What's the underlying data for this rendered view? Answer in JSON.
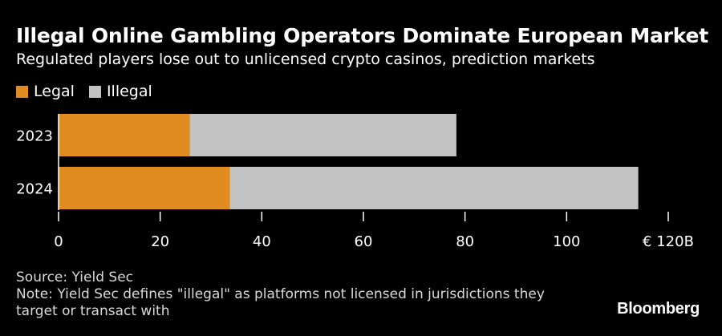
{
  "title": "Illegal Online Gambling Operators Dominate European Market",
  "subtitle": "Regulated players lose out to unlicensed crypto casinos, prediction markets",
  "source": "Source: Yield Sec",
  "note": "Note: Yield Sec defines \"illegal\" as platforms not licensed in jurisdictions they target or transact with",
  "brand": "Bloomberg",
  "colors": {
    "legal": "#e08c21",
    "illegal": "#c3c3c3",
    "axis": "#ffffff"
  },
  "chart_data": {
    "type": "bar",
    "orientation": "horizontal",
    "stacked": true,
    "categories": [
      "2023",
      "2024"
    ],
    "series": [
      {
        "name": "Legal",
        "values": [
          25.8,
          33.7
        ]
      },
      {
        "name": "Illegal",
        "values": [
          52.5,
          80.4
        ]
      }
    ],
    "xlim": [
      0,
      120
    ],
    "x_ticks": [
      0,
      20,
      40,
      60,
      80,
      100,
      120
    ],
    "x_tick_labels": [
      "0",
      "20",
      "40",
      "60",
      "80",
      "100",
      "€ 120B"
    ],
    "legend": "top-left",
    "grid": false
  }
}
